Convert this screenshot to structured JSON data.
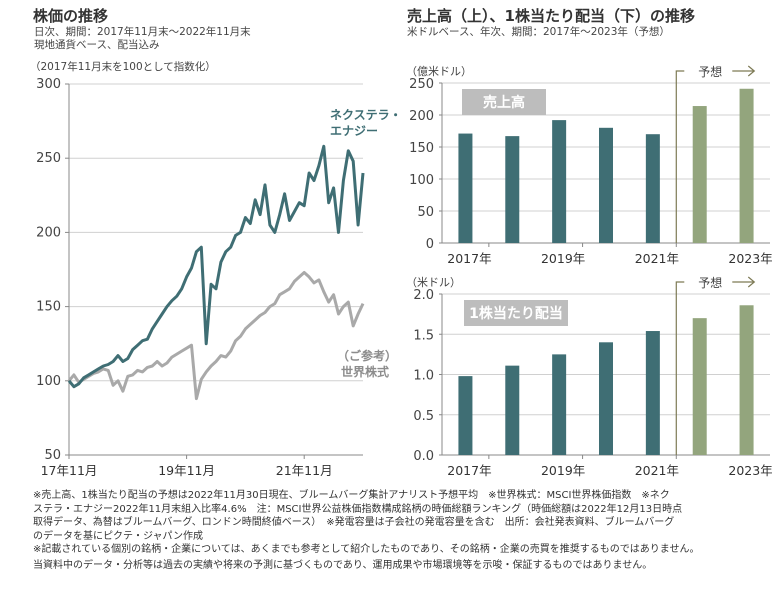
{
  "left": {
    "title": "株価の推移",
    "subtitle1": "日次、期間：2017年11月末～2022年11月末",
    "subtitle2": "現地通貨ベース、配当込み",
    "axis_note": "（2017年11月末を100として指数化）"
  },
  "right": {
    "title": "売上高（上）、1株当たり配当（下）の推移",
    "subtitle": "米ドルベース、年次、期間：2017年～2023年（予想）"
  },
  "footnotes": [
    "※売上高、1株当たり配当の予想は2022年11月30日現在、ブルームバーグ集計アナリスト予想平均　※世界株式：MSCI世界株価指数　※ネク",
    "ステラ・エナジー2022年11月末組入比率4.6%　注：MSCI世界公益株価指数構成銘柄の時価総額ランキング（時価総額は2022年12月13日時点",
    "取得データ、為替はブルームバーグ、ロンドン時間終値ベース）　※発電容量は子会社の発電容量を含む　出所：会社発表資料、ブルームバーグ",
    "のデータを基にピクテ・ジャパン作成",
    "※記載されている個別の銘柄・企業については、あくまでも参考として紹介したものであり、その銘柄・企業の売買を推奨するものではありません。",
    "当資料中のデータ・分析等は過去の実績や将来の予測に基づくものであり、運用成果や市場環境等を示唆・保証するものではありません。"
  ],
  "colors": {
    "actual": "#3f6e74",
    "forecast": "#93a57d",
    "world": "#a9a9a9",
    "label_box": "#bdbdbd",
    "forecast_line": "#7d7a55"
  },
  "chart_data": [
    {
      "type": "line",
      "title": "株価の推移",
      "ylabel": "（2017年11月末を100として指数化）",
      "ylim": [
        50,
        300
      ],
      "yticks": [
        "300",
        "250",
        "200",
        "150",
        "100",
        "50"
      ],
      "ytick_values": [
        300,
        250,
        200,
        150,
        100,
        50
      ],
      "xticks": [
        "17年11月",
        "19年11月",
        "21年11月"
      ],
      "xtick_values": [
        0,
        24,
        48
      ],
      "xlim": [
        0,
        60
      ],
      "grid": true,
      "series": [
        {
          "name": "ネクステラ・エナジー",
          "label_lines": [
            "ネクステラ・",
            "エナジー"
          ],
          "x": [
            0,
            1,
            2,
            3,
            4,
            5,
            6,
            7,
            8,
            9,
            10,
            11,
            12,
            13,
            14,
            15,
            16,
            17,
            18,
            19,
            20,
            21,
            22,
            23,
            24,
            25,
            26,
            27,
            28,
            29,
            30,
            31,
            32,
            33,
            34,
            35,
            36,
            37,
            38,
            39,
            40,
            41,
            42,
            43,
            44,
            45,
            46,
            47,
            48,
            49,
            50,
            51,
            52,
            53,
            54,
            55,
            56,
            57,
            58,
            59,
            60
          ],
          "values": [
            100,
            96,
            98,
            102,
            104,
            106,
            108,
            110,
            111,
            113,
            117,
            113,
            115,
            121,
            124,
            127,
            128,
            135,
            140,
            145,
            150,
            154,
            157,
            162,
            170,
            176,
            187,
            190,
            125,
            165,
            162,
            180,
            187,
            190,
            198,
            200,
            210,
            206,
            222,
            212,
            232,
            205,
            200,
            212,
            226,
            208,
            214,
            220,
            218,
            240,
            235,
            245,
            258,
            220,
            230,
            200,
            235,
            255,
            248,
            205,
            240
          ]
        },
        {
          "name": "（ご参考）世界株式",
          "label_lines": [
            "（ご参考）",
            "世界株式"
          ],
          "x": [
            0,
            1,
            2,
            3,
            4,
            5,
            6,
            7,
            8,
            9,
            10,
            11,
            12,
            13,
            14,
            15,
            16,
            17,
            18,
            19,
            20,
            21,
            22,
            23,
            24,
            25,
            26,
            27,
            28,
            29,
            30,
            31,
            32,
            33,
            34,
            35,
            36,
            37,
            38,
            39,
            40,
            41,
            42,
            43,
            44,
            45,
            46,
            47,
            48,
            49,
            50,
            51,
            52,
            53,
            54,
            55,
            56,
            57,
            58,
            59,
            60
          ],
          "values": [
            100,
            104,
            99,
            101,
            103,
            105,
            106,
            108,
            107,
            97,
            100,
            93,
            103,
            104,
            107,
            106,
            109,
            110,
            113,
            110,
            112,
            116,
            118,
            120,
            122,
            124,
            88,
            101,
            106,
            110,
            113,
            117,
            116,
            120,
            127,
            130,
            135,
            138,
            141,
            144,
            146,
            150,
            152,
            158,
            160,
            162,
            167,
            170,
            173,
            170,
            166,
            168,
            160,
            153,
            158,
            145,
            150,
            153,
            137,
            145,
            152
          ]
        }
      ]
    },
    {
      "type": "bar",
      "title": "売上高",
      "unit": "（億米ドル）",
      "ylim": [
        0,
        250
      ],
      "yticks": [
        "250",
        "200",
        "150",
        "100",
        "50",
        "0"
      ],
      "ytick_values": [
        250,
        200,
        150,
        100,
        50,
        0
      ],
      "categories": [
        "2017",
        "2018",
        "2019",
        "2020",
        "2021",
        "2022",
        "2023"
      ],
      "xtick_labels": [
        "2017年",
        "2019年",
        "2021年",
        "2023年"
      ],
      "values": [
        171,
        167,
        192,
        180,
        170,
        214,
        241
      ],
      "forecast": [
        false,
        false,
        false,
        false,
        false,
        true,
        true
      ],
      "forecast_label": "予想",
      "forecast_arrow": "→"
    },
    {
      "type": "bar",
      "title": "1株当たり配当",
      "unit": "（米ドル）",
      "ylim": [
        0,
        2.0
      ],
      "yticks": [
        "2.0",
        "1.5",
        "1.0",
        "0.5",
        "0.0"
      ],
      "ytick_values": [
        2.0,
        1.5,
        1.0,
        0.5,
        0.0
      ],
      "categories": [
        "2017",
        "2018",
        "2019",
        "2020",
        "2021",
        "2022",
        "2023"
      ],
      "xtick_labels": [
        "2017年",
        "2019年",
        "2021年",
        "2023年"
      ],
      "values": [
        0.98,
        1.11,
        1.25,
        1.4,
        1.54,
        1.7,
        1.86
      ],
      "forecast": [
        false,
        false,
        false,
        false,
        false,
        true,
        true
      ],
      "forecast_label": "予想",
      "forecast_arrow": "→"
    }
  ]
}
